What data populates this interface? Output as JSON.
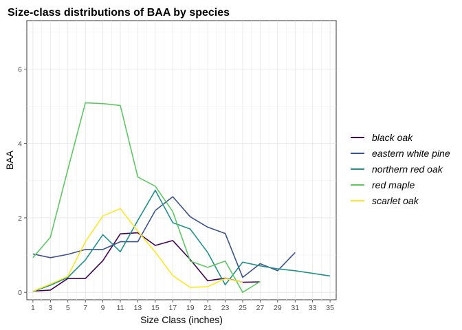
{
  "chart_data": {
    "type": "line",
    "title": "Size-class distributions of BAA by species",
    "xlabel": "Size Class (inches)",
    "ylabel": "BAA",
    "x_ticks": [
      1,
      3,
      5,
      7,
      9,
      11,
      13,
      15,
      17,
      19,
      21,
      23,
      25,
      27,
      29,
      31,
      33,
      35
    ],
    "y_ticks": [
      0,
      2,
      4,
      6
    ],
    "xlim": [
      0.3,
      35.7
    ],
    "ylim": [
      -0.2,
      7.3
    ],
    "grid": true,
    "legend_position": "right",
    "series": [
      {
        "name": "black oak",
        "color": "#440154",
        "x": [
          1,
          3,
          5,
          7,
          9,
          11,
          13,
          15,
          17,
          19,
          21,
          23,
          25,
          27
        ],
        "y": [
          0.03,
          0.06,
          0.37,
          0.37,
          0.85,
          1.57,
          1.6,
          1.26,
          1.39,
          0.88,
          0.31,
          0.38,
          0.27,
          0.28
        ]
      },
      {
        "name": "eastern white pine",
        "color": "#3b528b",
        "x": [
          1,
          3,
          5,
          7,
          9,
          11,
          13,
          15,
          17,
          19,
          21,
          23,
          25,
          27,
          29,
          31
        ],
        "y": [
          1.03,
          0.93,
          1.02,
          1.15,
          1.15,
          1.36,
          1.36,
          2.2,
          2.57,
          2.03,
          1.75,
          1.58,
          0.4,
          0.77,
          0.58,
          1.07
        ]
      },
      {
        "name": "northern red oak",
        "color": "#21908c",
        "x": [
          1,
          3,
          5,
          7,
          9,
          11,
          13,
          15,
          17,
          19,
          21,
          23,
          25,
          27,
          29,
          31,
          33,
          35
        ],
        "y": [
          0.02,
          0.19,
          0.4,
          0.87,
          1.55,
          1.09,
          1.93,
          2.74,
          1.87,
          1.7,
          1.07,
          0.2,
          0.81,
          0.71,
          0.63,
          0.58,
          0.51,
          0.44
        ]
      },
      {
        "name": "red maple",
        "color": "#5dc863",
        "x": [
          1,
          3,
          5,
          7,
          9,
          11,
          13,
          15,
          17,
          19,
          21,
          23,
          25,
          27
        ],
        "y": [
          0.93,
          1.48,
          3.3,
          5.09,
          5.07,
          5.02,
          3.1,
          2.85,
          2.17,
          0.84,
          0.67,
          0.84,
          0.0,
          0.29
        ]
      },
      {
        "name": "scarlet oak",
        "color": "#fde725",
        "x": [
          1,
          3,
          5,
          7,
          9,
          11,
          13,
          15,
          17,
          19,
          21,
          23,
          25
        ],
        "y": [
          0.03,
          0.22,
          0.43,
          1.36,
          2.05,
          2.25,
          1.64,
          1.08,
          0.45,
          0.13,
          0.15,
          0.37,
          0.27
        ]
      }
    ]
  }
}
